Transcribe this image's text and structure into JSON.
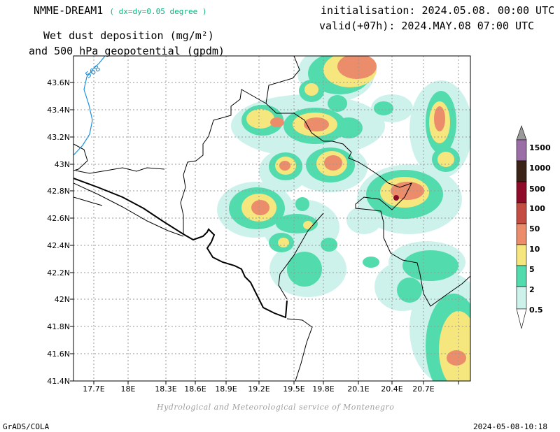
{
  "header": {
    "model": "NMME-DREAM1",
    "resolution": "( dx=dy=0.05 degree )",
    "variable_line1": "Wet dust deposition (mg/m²)",
    "variable_line2": "and 500 hPa geopotential (gpdm)",
    "init": "initialisation: 2024.05.08. 00:00 UTC",
    "valid": "valid(+07h): 2024.MAY.08 07:00 UTC"
  },
  "map": {
    "lon_ticks": [
      "17.7E",
      "18E",
      "18.3E",
      "18.6E",
      "18.9E",
      "19.2E",
      "19.5E",
      "19.8E",
      "20.1E",
      "20.4E",
      "20.7E"
    ],
    "lat_ticks": [
      "43.6N",
      "43.4N",
      "43.2N",
      "43N",
      "42.8N",
      "42.6N",
      "42.4N",
      "42.2N",
      "42N",
      "41.8N",
      "41.6N",
      "41.4N"
    ],
    "contour_label": "568",
    "credit": "Hydrological and Meteorological service of Montenegro"
  },
  "legend": {
    "levels": [
      "1500",
      "1000",
      "500",
      "100",
      "50",
      "10",
      "5",
      "2",
      "0.5"
    ],
    "colors": {
      "c_05": "#cdf2ec",
      "c_2": "#52dbac",
      "c_5": "#f5e67d",
      "c_10": "#eb8c6b",
      "c_50": "#c34d42",
      "c_100": "#8e0b2a",
      "c_500": "#3b2318",
      "c_1000": "#9b6ea8",
      "c_1500": "#9a9a9a"
    }
  },
  "footer": {
    "left": "GrADS/COLA",
    "right": "2024-05-08-10:18"
  }
}
